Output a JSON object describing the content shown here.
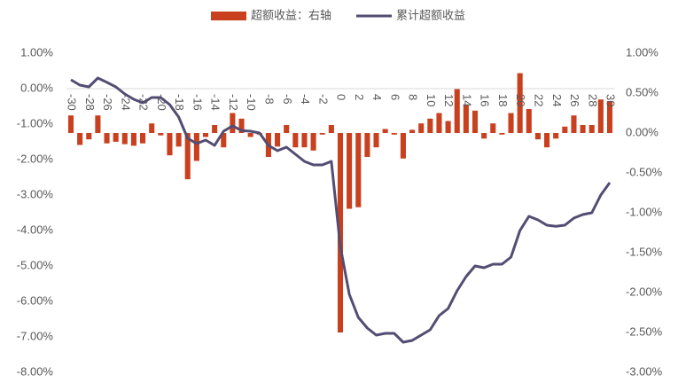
{
  "chart_data": {
    "type": "bar-line",
    "categories": [
      -30,
      null,
      -28,
      null,
      -26,
      null,
      -24,
      null,
      -22,
      null,
      -20,
      null,
      -18,
      null,
      -16,
      null,
      -14,
      null,
      -12,
      null,
      -10,
      null,
      -8,
      null,
      -6,
      null,
      -4,
      null,
      -2,
      null,
      0,
      null,
      2,
      null,
      4,
      null,
      6,
      null,
      8,
      null,
      10,
      null,
      12,
      null,
      14,
      null,
      16,
      null,
      18,
      null,
      20,
      null,
      22,
      null,
      24,
      null,
      26,
      null,
      28,
      null,
      30
    ],
    "series": [
      {
        "name": "超额收益：右轴",
        "type": "bar",
        "axis": "y2",
        "color": "#c9401f",
        "values": [
          0.22,
          -0.15,
          -0.08,
          0.22,
          -0.13,
          -0.11,
          -0.14,
          -0.16,
          -0.13,
          0.12,
          -0.03,
          -0.28,
          -0.17,
          -0.58,
          -0.35,
          -0.05,
          0.1,
          -0.18,
          0.25,
          0.18,
          -0.05,
          -0.02,
          -0.3,
          -0.17,
          0.1,
          -0.18,
          -0.18,
          -0.22,
          -0.02,
          0.1,
          -2.5,
          -0.95,
          -0.93,
          -0.3,
          -0.18,
          0.05,
          -0.02,
          -0.32,
          0.04,
          0.12,
          0.18,
          0.25,
          0.15,
          0.55,
          0.35,
          0.28,
          -0.07,
          0.12,
          -0.02,
          0.25,
          0.75,
          0.3,
          -0.08,
          -0.18,
          -0.07,
          0.08,
          0.22,
          0.1,
          0.1,
          0.42,
          0.4
        ]
      },
      {
        "name": "累计超额收益",
        "type": "line",
        "axis": "y",
        "color": "#524d72",
        "values": [
          0.25,
          0.1,
          0.05,
          0.3,
          0.18,
          0.05,
          -0.15,
          -0.3,
          -0.4,
          -0.25,
          -0.25,
          -0.45,
          -0.8,
          -1.4,
          -1.55,
          -1.45,
          -1.6,
          -1.2,
          -1.05,
          -1.18,
          -1.2,
          -1.25,
          -1.6,
          -1.75,
          -1.65,
          -1.85,
          -2.05,
          -2.15,
          -2.15,
          -2.05,
          -4.45,
          -5.8,
          -6.45,
          -6.75,
          -6.95,
          -6.9,
          -6.9,
          -7.15,
          -7.1,
          -6.95,
          -6.8,
          -6.4,
          -6.2,
          -5.7,
          -5.3,
          -5.0,
          -5.05,
          -4.95,
          -4.95,
          -4.75,
          -4.0,
          -3.6,
          -3.7,
          -3.85,
          -3.88,
          -3.85,
          -3.65,
          -3.55,
          -3.5,
          -3.0,
          -2.65
        ]
      }
    ],
    "ylim": [
      -8,
      1
    ],
    "yticks": [
      {
        "value": 1,
        "label": "1.00%"
      },
      {
        "value": 0,
        "label": "0.00%"
      },
      {
        "value": -1,
        "label": "-1.00%"
      },
      {
        "value": -2,
        "label": "-2.00%"
      },
      {
        "value": -3,
        "label": "-3.00%"
      },
      {
        "value": -4,
        "label": "-4.00%"
      },
      {
        "value": -5,
        "label": "-5.00%"
      },
      {
        "value": -6,
        "label": "-6.00%"
      },
      {
        "value": -7,
        "label": "-7.00%"
      },
      {
        "value": -8,
        "label": "-8.00%"
      }
    ],
    "y2lim": [
      -3,
      1
    ],
    "y2ticks": [
      {
        "value": 1,
        "label": "1.00%"
      },
      {
        "value": 0.5,
        "label": "0.50%"
      },
      {
        "value": 0,
        "label": "0.00%"
      },
      {
        "value": -0.5,
        "label": "-0.50%"
      },
      {
        "value": -1,
        "label": "-1.00%"
      },
      {
        "value": -1.5,
        "label": "-1.50%"
      },
      {
        "value": -2,
        "label": "-2.00%"
      },
      {
        "value": -2.5,
        "label": "-2.50%"
      },
      {
        "value": -3,
        "label": "-3.00%"
      }
    ],
    "legend": "top"
  }
}
